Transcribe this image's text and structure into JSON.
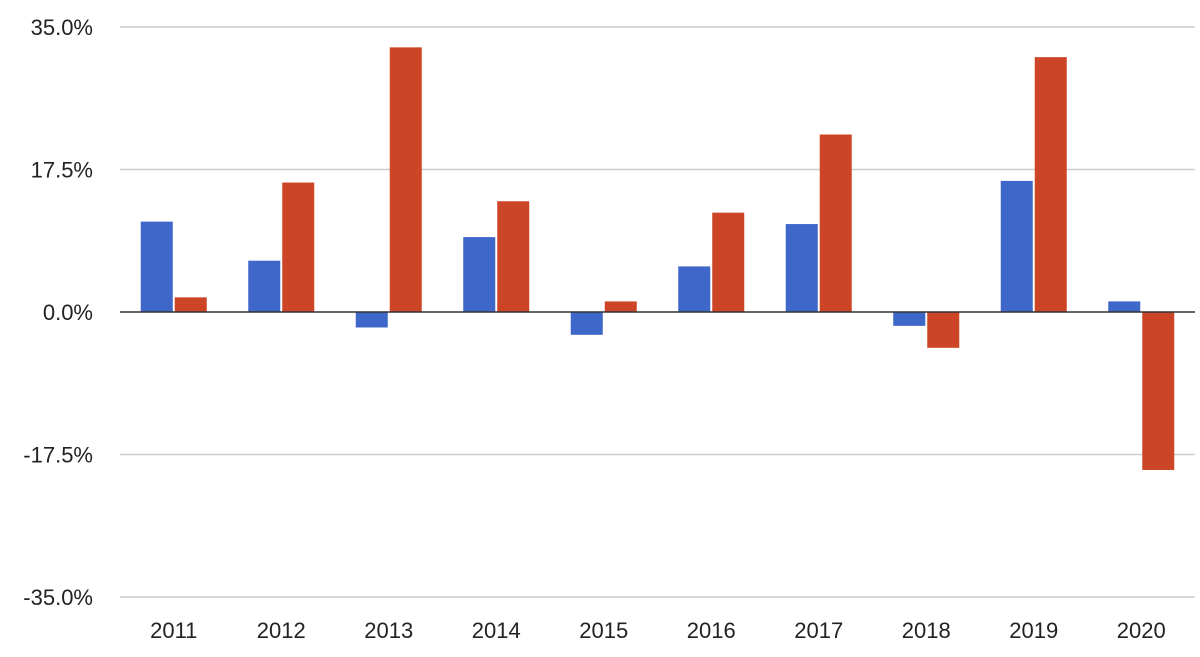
{
  "chart_data": {
    "type": "bar",
    "title": "",
    "xlabel": "",
    "ylabel": "",
    "categories": [
      "2011",
      "2012",
      "2013",
      "2014",
      "2015",
      "2016",
      "2017",
      "2018",
      "2019",
      "2020"
    ],
    "series": [
      {
        "color": "#3f66c9",
        "values": [
          11.1,
          6.3,
          -1.9,
          9.2,
          -2.8,
          5.6,
          10.8,
          -1.7,
          16.1,
          1.3
        ]
      },
      {
        "color": "#cc4526",
        "values": [
          1.8,
          15.9,
          32.5,
          13.6,
          1.3,
          12.2,
          21.8,
          -4.4,
          31.3,
          -19.4
        ]
      }
    ],
    "ylim": [
      -35,
      35
    ],
    "yticks": [
      35,
      17.5,
      0,
      -17.5,
      -35
    ],
    "ytick_labels": [
      "35.0%",
      "17.5%",
      "0.0%",
      "-17.5%",
      "-35.0%"
    ],
    "grid": true,
    "legend": "none"
  }
}
